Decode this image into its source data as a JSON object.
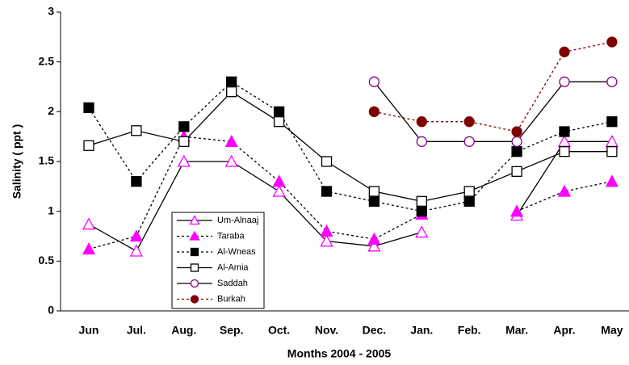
{
  "chart_data": {
    "type": "line",
    "x_label": "Months  2004  -  2005",
    "y_label": "Salinity ( ppt )",
    "categories": [
      "Jun",
      "Jul.",
      "Aug.",
      "Sep.",
      "Oct.",
      "Nov.",
      "Dec.",
      "Jan.",
      "Feb.",
      "Mar.",
      "Apr.",
      "May"
    ],
    "ylim": [
      0,
      3
    ],
    "yticks": [
      0,
      0.5,
      1,
      1.5,
      2,
      2.5,
      3
    ],
    "legend": "lower-left",
    "series": [
      {
        "name": "Um-Alnaaj",
        "color": "#ff00ff",
        "line_color": "#000000",
        "marker": "triangle",
        "filled": false,
        "dashed": false,
        "values": [
          0.87,
          0.6,
          1.5,
          1.5,
          1.2,
          0.7,
          0.65,
          0.79,
          null,
          0.96,
          1.7,
          1.7
        ]
      },
      {
        "name": "Taraba",
        "color": "#ff00ff",
        "line_color": "#000000",
        "marker": "triangle",
        "filled": true,
        "dashed": true,
        "values": [
          0.62,
          0.75,
          1.75,
          1.7,
          1.3,
          0.8,
          0.72,
          0.97,
          null,
          1.0,
          1.2,
          1.3
        ]
      },
      {
        "name": "Al-Wneas",
        "color": "#000000",
        "line_color": "#000000",
        "marker": "square",
        "filled": true,
        "dashed": true,
        "values": [
          2.04,
          1.3,
          1.85,
          2.3,
          2.0,
          1.2,
          1.1,
          1.0,
          1.1,
          1.6,
          1.8,
          1.9
        ]
      },
      {
        "name": "Al-Amia",
        "color": "#000000",
        "line_color": "#000000",
        "marker": "square",
        "filled": false,
        "dashed": false,
        "values": [
          1.66,
          1.81,
          1.7,
          2.2,
          1.9,
          1.5,
          1.2,
          1.1,
          1.2,
          1.4,
          1.6,
          1.6
        ]
      },
      {
        "name": "Saddah",
        "color": "#800080",
        "line_color": "#000000",
        "marker": "circle",
        "filled": false,
        "dashed": false,
        "values": [
          null,
          null,
          null,
          null,
          null,
          null,
          2.3,
          1.7,
          1.7,
          1.7,
          2.3,
          2.3
        ]
      },
      {
        "name": "Burkah",
        "color": "#800000",
        "line_color": "#800000",
        "marker": "circle",
        "filled": true,
        "dashed": true,
        "values": [
          null,
          null,
          null,
          null,
          null,
          null,
          2.0,
          1.9,
          1.9,
          1.8,
          2.6,
          2.7
        ]
      }
    ]
  }
}
